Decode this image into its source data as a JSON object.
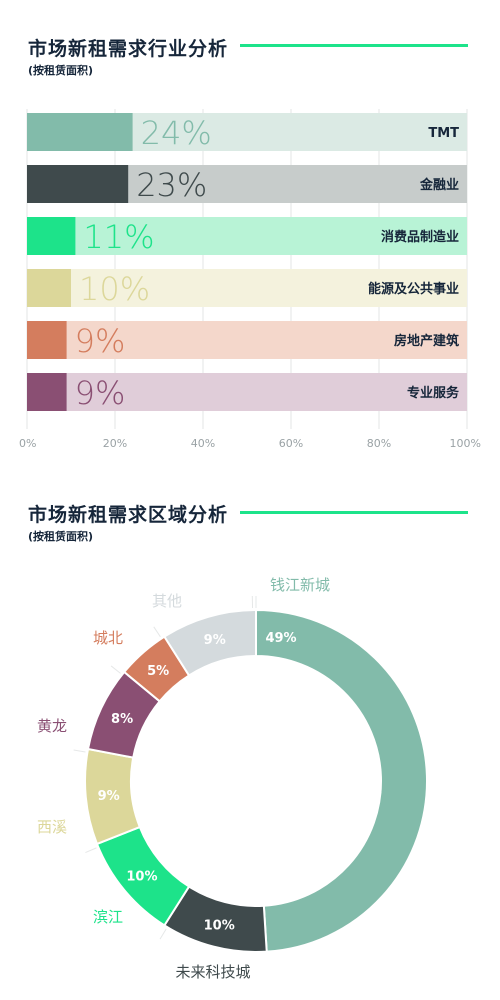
{
  "industry": {
    "title": "市场新租需求行业分析",
    "subtitle": "(按租赁面积)"
  },
  "region": {
    "title": "市场新租需求区域分析",
    "subtitle": "(按租赁面积)"
  },
  "chart_data": [
    {
      "type": "bar",
      "orientation": "horizontal",
      "title": "市场新租需求行业分析",
      "subtitle": "(按租赁面积)",
      "categories": [
        "TMT",
        "金融业",
        "消费品制造业",
        "能源及公共事业",
        "房地产建筑",
        "专业服务"
      ],
      "values": [
        24,
        23,
        11,
        10,
        9,
        9
      ],
      "value_labels": [
        "24%",
        "23%",
        "11%",
        "10%",
        "9%",
        "9%"
      ],
      "colors": [
        "#82bbaa",
        "#3f4a4c",
        "#1de38a",
        "#dcd79a",
        "#d47d5e",
        "#8a4f73"
      ],
      "track_colors": [
        "#dbeae4",
        "#c7cccb",
        "#b8f3d6",
        "#f4f2dd",
        "#f4d7cb",
        "#e0cdd9"
      ],
      "xlim": [
        0,
        100
      ],
      "x_ticks": [
        "0%",
        "20%",
        "40%",
        "60%",
        "80%",
        "100%"
      ],
      "grid": true
    },
    {
      "type": "pie",
      "style": "donut",
      "title": "市场新租需求区域分析",
      "subtitle": "(按租赁面积)",
      "categories": [
        "钱江新城",
        "未来科技城",
        "滨江",
        "西溪",
        "黄龙",
        "城北",
        "其他"
      ],
      "values": [
        49,
        10,
        10,
        9,
        8,
        5,
        9
      ],
      "value_labels": [
        "49%",
        "10%",
        "10%",
        "9%",
        "8%",
        "5%",
        "9%"
      ],
      "colors": [
        "#82bbaa",
        "#3f4a4c",
        "#1de38a",
        "#dcd79a",
        "#8a4f73",
        "#d47d5e",
        "#d4dadd"
      ]
    }
  ]
}
